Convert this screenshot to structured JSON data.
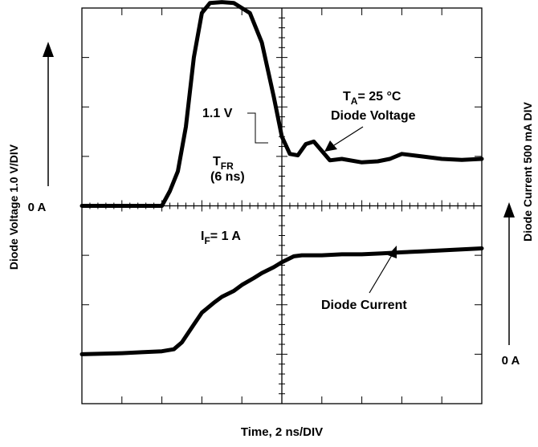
{
  "chart_data": {
    "type": "line",
    "title": "",
    "xlabel": "Time, 2 ns/DIV",
    "ylabel_left": "Diode Voltage 1.0 V/DIV",
    "ylabel_right": "Diode Current 500 mA DIV",
    "x_divisions": 10,
    "y_divisions": 8,
    "x_unit_per_div_ns": 2,
    "grid": false,
    "center_tick_axes": true,
    "voltage_zero_label": "0 A",
    "current_zero_label": "0 A",
    "series": [
      {
        "name": "Diode Voltage",
        "x_ns": [
          0,
          4.0,
          4.4,
          4.8,
          5.2,
          5.6,
          6.0,
          6.4,
          7.0,
          7.6,
          8.4,
          9.0,
          9.6,
          10.0,
          10.4,
          10.8,
          11.2,
          11.6,
          12.4,
          13.0,
          14.0,
          14.8,
          15.4,
          16.0,
          17.0,
          18.0,
          19.0,
          20.0
        ],
        "y_volts": [
          0,
          0,
          0.3,
          0.7,
          1.6,
          3.0,
          3.9,
          4.1,
          4.12,
          4.1,
          3.9,
          3.3,
          2.2,
          1.4,
          1.05,
          1.02,
          1.25,
          1.3,
          0.92,
          0.95,
          0.88,
          0.9,
          0.95,
          1.05,
          1.0,
          0.95,
          0.93,
          0.95
        ]
      },
      {
        "name": "Diode Current",
        "x_ns": [
          0,
          1.0,
          2.0,
          3.0,
          4.0,
          4.6,
          5.0,
          5.6,
          6.0,
          6.6,
          7.0,
          7.6,
          8.0,
          8.6,
          9.0,
          9.6,
          10.0,
          10.6,
          11.0,
          12.0,
          13.0,
          14.0,
          15.0,
          16.0,
          17.0,
          18.0,
          19.0,
          20.0
        ],
        "y_amps": [
          0,
          0.005,
          0.01,
          0.02,
          0.03,
          0.05,
          0.12,
          0.3,
          0.42,
          0.52,
          0.58,
          0.64,
          0.7,
          0.77,
          0.82,
          0.88,
          0.93,
          0.99,
          1.0,
          1.0,
          1.01,
          1.01,
          1.02,
          1.03,
          1.04,
          1.05,
          1.06,
          1.07
        ]
      }
    ],
    "annotations": [
      {
        "id": "tfr_title_main",
        "text": "T"
      },
      {
        "id": "tfr_title_sub",
        "text": "FR"
      },
      {
        "id": "tfr_value",
        "text": "(6 ns)"
      },
      {
        "id": "v_level",
        "text": "1.1 V"
      },
      {
        "id": "ta_main",
        "text": "T"
      },
      {
        "id": "ta_sub",
        "text": "A"
      },
      {
        "id": "ta_rest",
        "text": "= 25 °C"
      },
      {
        "id": "diode_voltage",
        "text": "Diode Voltage"
      },
      {
        "id": "if_main",
        "text": "I"
      },
      {
        "id": "if_sub",
        "text": "F"
      },
      {
        "id": "if_rest",
        "text": "= 1 A"
      },
      {
        "id": "diode_current",
        "text": "Diode Current"
      }
    ]
  }
}
